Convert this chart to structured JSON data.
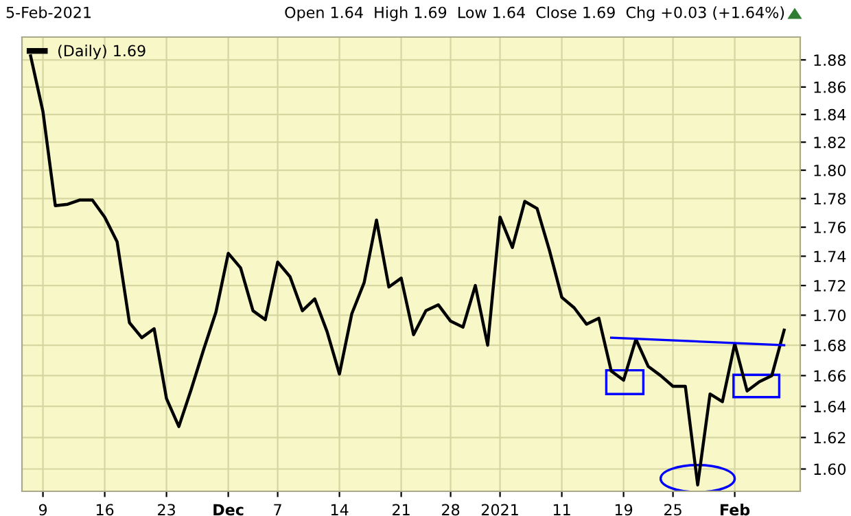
{
  "chart_data": {
    "type": "line",
    "title": "5-Feb-2021",
    "subtitle": "Open 1.64  High 1.69  Low 1.64  Close 1.69  Chg +0.03 (+1.64%)",
    "categories": [
      null,
      "9",
      null,
      null,
      null,
      null,
      "16",
      null,
      null,
      null,
      null,
      "23",
      null,
      null,
      null,
      null,
      "Dec",
      null,
      null,
      null,
      "7",
      null,
      null,
      null,
      null,
      "14",
      null,
      null,
      null,
      null,
      "21",
      null,
      null,
      null,
      "28",
      null,
      null,
      null,
      "2021",
      null,
      null,
      null,
      null,
      "11",
      null,
      null,
      null,
      null,
      "19",
      null,
      null,
      null,
      "25",
      null,
      null,
      null,
      null,
      "Feb",
      null,
      null,
      null,
      null
    ],
    "series": [
      {
        "name": "(Daily) 1.69",
        "color": "#000000",
        "values": [
          1.883,
          1.842,
          1.775,
          1.776,
          1.779,
          1.779,
          1.767,
          1.75,
          1.695,
          1.685,
          1.691,
          1.645,
          1.627,
          1.651,
          1.677,
          1.702,
          1.742,
          1.732,
          1.703,
          1.697,
          1.736,
          1.726,
          1.703,
          1.711,
          1.689,
          1.661,
          1.701,
          1.722,
          1.765,
          1.719,
          1.725,
          1.687,
          1.703,
          1.707,
          1.696,
          1.692,
          1.72,
          1.68,
          1.767,
          1.746,
          1.778,
          1.773,
          1.744,
          1.712,
          1.705,
          1.694,
          1.698,
          1.663,
          1.657,
          1.684,
          1.666,
          1.66,
          1.653,
          1.653,
          1.59,
          1.648,
          1.643,
          1.681,
          1.65,
          1.656,
          1.66,
          1.69
        ]
      },
      {
        "color": "#0000ff",
        "values": [
          null,
          null,
          null,
          null,
          null,
          null,
          null,
          null,
          null,
          null,
          null,
          null,
          null,
          null,
          null,
          null,
          null,
          null,
          null,
          null,
          null,
          null,
          null,
          null,
          null,
          null,
          null,
          null,
          null,
          null,
          null,
          null,
          null,
          null,
          null,
          null,
          null,
          null,
          null,
          null,
          null,
          null,
          null,
          null,
          null,
          null,
          null,
          1.685,
          null,
          null,
          null,
          null,
          null,
          null,
          null,
          null,
          null,
          null,
          null,
          null,
          null,
          1.68
        ]
      }
    ],
    "log": "y",
    "ylim": [
      1.586,
      1.897
    ],
    "yticks": [
      {
        "value": 1.6,
        "label": "1.60"
      },
      {
        "value": 1.62,
        "label": "1.62"
      },
      {
        "value": 1.64,
        "label": "1.64"
      },
      {
        "value": 1.66,
        "label": "1.66"
      },
      {
        "value": 1.68,
        "label": "1.68"
      },
      {
        "value": 1.7,
        "label": "1.70"
      },
      {
        "value": 1.72,
        "label": "1.72"
      },
      {
        "value": 1.74,
        "label": "1.74"
      },
      {
        "value": 1.76,
        "label": "1.76"
      },
      {
        "value": 1.78,
        "label": "1.78"
      },
      {
        "value": 1.8,
        "label": "1.80"
      },
      {
        "value": 1.82,
        "label": "1.82"
      },
      {
        "value": 1.84,
        "label": "1.84"
      },
      {
        "value": 1.86,
        "label": "1.86"
      },
      {
        "value": 1.88,
        "label": "1.88"
      }
    ],
    "grid": true,
    "legend": "top left",
    "marker": "none",
    "line_style": "solid"
  }
}
